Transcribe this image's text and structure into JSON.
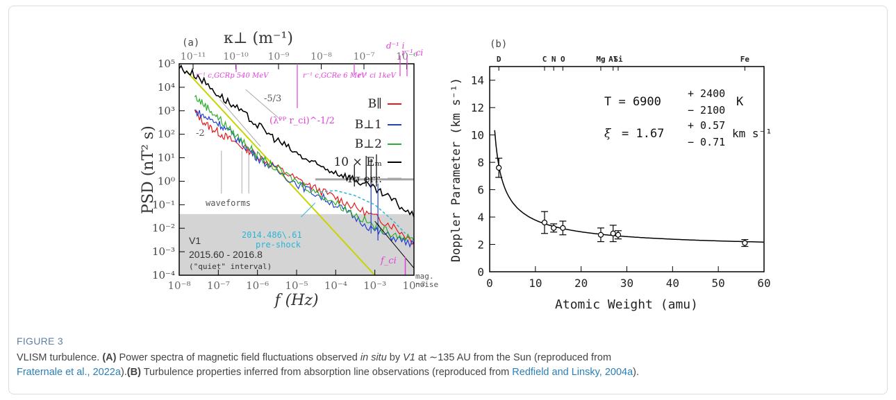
{
  "figure_label": "FIGURE 3",
  "caption": {
    "line1": [
      {
        "t": "VLISM turbulence. ",
        "s": ""
      },
      {
        "t": "(A)",
        "s": "b"
      },
      {
        "t": " Power spectra of magnetic field fluctuations observed ",
        "s": ""
      },
      {
        "t": "in situ",
        "s": "i"
      },
      {
        "t": " by ",
        "s": ""
      },
      {
        "t": "V1",
        "s": "i"
      },
      {
        "t": " at ∼135 AU from the Sun (reproduced from",
        "s": ""
      }
    ],
    "line2": [
      {
        "t": "Fraternale et al., 2022a",
        "s": "link"
      },
      {
        "t": ").",
        "s": ""
      },
      {
        "t": "(B)",
        "s": "b"
      },
      {
        "t": " Turbulence properties inferred from absorption line observations (reproduced from ",
        "s": ""
      },
      {
        "t": "Redfield and Linsky, 2004a",
        "s": "link"
      },
      {
        "t": ").",
        "s": ""
      }
    ]
  },
  "colors": {
    "b_par": "#e41a1c",
    "b_perp1": "#1f3fd0",
    "b_perp2": "#2cae2c",
    "em": "#000000",
    "err": "#a6a6a6",
    "kappa_marks": "#e040d8",
    "preshock": "#29b6d6",
    "fit_line": "#c8d400",
    "shade": "#d4d4d4"
  },
  "chart_data": [
    {
      "panel": "(a)",
      "type": "line",
      "xlabel": "f (Hz)",
      "ylabel": "PSD (nT² s)",
      "top_axis_label": "κ⊥ (m⁻¹)",
      "x_log": true,
      "y_log": true,
      "xlim": [
        1e-08,
        0.01
      ],
      "ylim": [
        0.0001,
        100000.0
      ],
      "x_ticks": [
        "10⁻⁸",
        "10⁻⁷",
        "10⁻⁶",
        "10⁻⁵",
        "10⁻⁴",
        "10⁻³",
        "10⁻²"
      ],
      "y_ticks": [
        "10⁻⁴",
        "10⁻³",
        "10⁻²",
        "10⁻¹",
        "10⁰",
        "10¹",
        "10²",
        "10³",
        "10⁴",
        "10⁵"
      ],
      "top_ticks": [
        "10⁻¹¹",
        "10⁻¹⁰",
        "10⁻⁹",
        "10⁻⁸",
        "10⁻⁷",
        "10⁻⁶"
      ],
      "legend": [
        "B∥",
        "B⊥1",
        "B⊥2",
        "10 × Eₘ",
        "1σ err."
      ],
      "series": [
        {
          "name": "B∥",
          "x": [
            2.5e-08,
            5e-08,
            1e-07,
            2e-07,
            5e-07,
            1e-06,
            3e-06,
            1e-05,
            3e-05,
            0.0001,
            0.0003,
            0.001,
            0.003,
            0.01
          ],
          "y": [
            900,
            250,
            120,
            60,
            25,
            12,
            4,
            1.2,
            0.5,
            0.2,
            0.08,
            0.03,
            0.012,
            0.0025
          ]
        },
        {
          "name": "B⊥1",
          "x": [
            2.5e-08,
            5e-08,
            1e-07,
            2e-07,
            5e-07,
            1e-06,
            3e-06,
            1e-05,
            3e-05,
            0.0001,
            0.0003,
            0.001,
            0.003,
            0.01
          ],
          "y": [
            1000,
            500,
            300,
            120,
            30,
            10,
            3,
            0.8,
            0.3,
            0.1,
            0.03,
            0.008,
            0.004,
            0.002
          ]
        },
        {
          "name": "B⊥2",
          "x": [
            2.5e-08,
            5e-08,
            1e-07,
            2e-07,
            5e-07,
            1e-06,
            3e-06,
            1e-05,
            3e-05,
            0.0001,
            0.0003,
            0.001,
            0.003,
            0.01
          ],
          "y": [
            4000,
            1500,
            500,
            150,
            40,
            12,
            3.5,
            1,
            0.35,
            0.12,
            0.04,
            0.012,
            0.006,
            0.003
          ]
        },
        {
          "name": "10 × Eₘ",
          "x": [
            1e-08,
            3e-08,
            1e-07,
            3e-07,
            1e-06,
            3e-06,
            1e-05,
            3e-05,
            0.0001,
            0.0003,
            0.001,
            0.003,
            0.01
          ],
          "y": [
            70000,
            30000,
            5000,
            1200,
            250,
            60,
            15,
            5,
            2.5,
            1.2,
            0.45,
            0.15,
            0.03
          ]
        }
      ],
      "reference_slopes": [
        "-2",
        "-5/3"
      ],
      "annotations": [
        "waveforms",
        "2014.486\\.61",
        "pre-shock",
        "V1",
        "2015.60 - 2016.8",
        "(\"quiet\" interval)",
        "f_ci",
        "mag.",
        "noise",
        "(λᴾᴾ r_ci)^-1/2",
        "r⁻¹ c,GCRp 540 MeV",
        "r⁻¹ c,GCRe 6 MeV",
        "r⁻¹ ci 1keV",
        "d⁻¹ i",
        "r⁻¹ ci"
      ]
    },
    {
      "panel": "(b)",
      "type": "scatter",
      "xlabel": "Atomic Weight (amu)",
      "ylabel": "Doppler Parameter (km s⁻¹)",
      "xlim": [
        0,
        60
      ],
      "ylim": [
        0,
        15
      ],
      "x_ticks": [
        0,
        10,
        20,
        30,
        40,
        50,
        60
      ],
      "y_ticks": [
        0,
        2,
        4,
        6,
        8,
        10,
        12,
        14
      ],
      "element_labels": [
        "D",
        "C",
        "N",
        "O",
        "Mg",
        "Al",
        "Si",
        "Fe"
      ],
      "element_masses": [
        2,
        12,
        14,
        16,
        24,
        27,
        28,
        56
      ],
      "points": [
        {
          "x": 2,
          "y": 7.6,
          "err": 0.7
        },
        {
          "x": 12,
          "y": 3.6,
          "err": 0.8
        },
        {
          "x": 14,
          "y": 3.2,
          "err": 0.3
        },
        {
          "x": 16,
          "y": 3.2,
          "err": 0.5
        },
        {
          "x": 24.3,
          "y": 2.7,
          "err": 0.5
        },
        {
          "x": 27,
          "y": 2.8,
          "err": 0.6
        },
        {
          "x": 28.1,
          "y": 2.7,
          "err": 0.3
        },
        {
          "x": 55.8,
          "y": 2.1,
          "err": 0.25
        }
      ],
      "fit": {
        "T": "6900",
        "T_plus": "+ 2400",
        "T_minus": "− 2100",
        "T_unit": "K",
        "xi": "1.67",
        "xi_plus": "+ 0.57",
        "xi_minus": "− 0.71",
        "xi_unit": "km s⁻¹"
      }
    }
  ]
}
